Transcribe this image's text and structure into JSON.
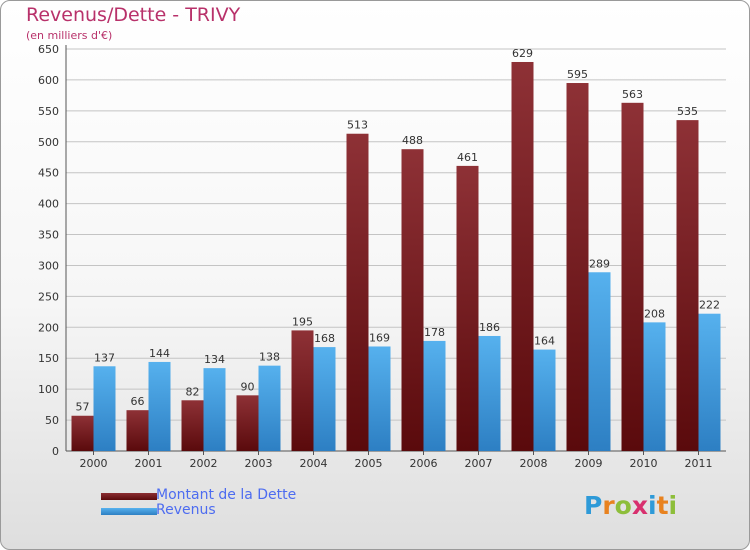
{
  "header": {
    "title": "Revenus/Dette - TRIVY",
    "subtitle": "(en milliers d'€)"
  },
  "logo": {
    "letters": [
      "P",
      "r",
      "o",
      "x",
      "i",
      "t",
      "i"
    ],
    "colors": [
      "#2e9ad8",
      "#e8821f",
      "#8dbe3a",
      "#d8306e",
      "#2e9ad8",
      "#e8821f",
      "#8dbe3a"
    ]
  },
  "chart_data": {
    "type": "bar",
    "categories": [
      "2000",
      "2001",
      "2002",
      "2003",
      "2004",
      "2005",
      "2006",
      "2007",
      "2008",
      "2009",
      "2010",
      "2011"
    ],
    "series": [
      {
        "name": "Montant de la Dette",
        "values": [
          57,
          66,
          82,
          90,
          195,
          513,
          488,
          461,
          629,
          595,
          563,
          535
        ],
        "color": "#8b2e32"
      },
      {
        "name": "Revenus",
        "values": [
          137,
          144,
          134,
          138,
          168,
          169,
          178,
          186,
          164,
          289,
          208,
          222
        ],
        "color": "#4aa3e3"
      }
    ],
    "ylim": [
      0,
      650
    ],
    "yticks": [
      0,
      50,
      100,
      150,
      200,
      250,
      300,
      350,
      400,
      450,
      500,
      550,
      600,
      650
    ],
    "grid": true,
    "legend": "bottom-left"
  }
}
